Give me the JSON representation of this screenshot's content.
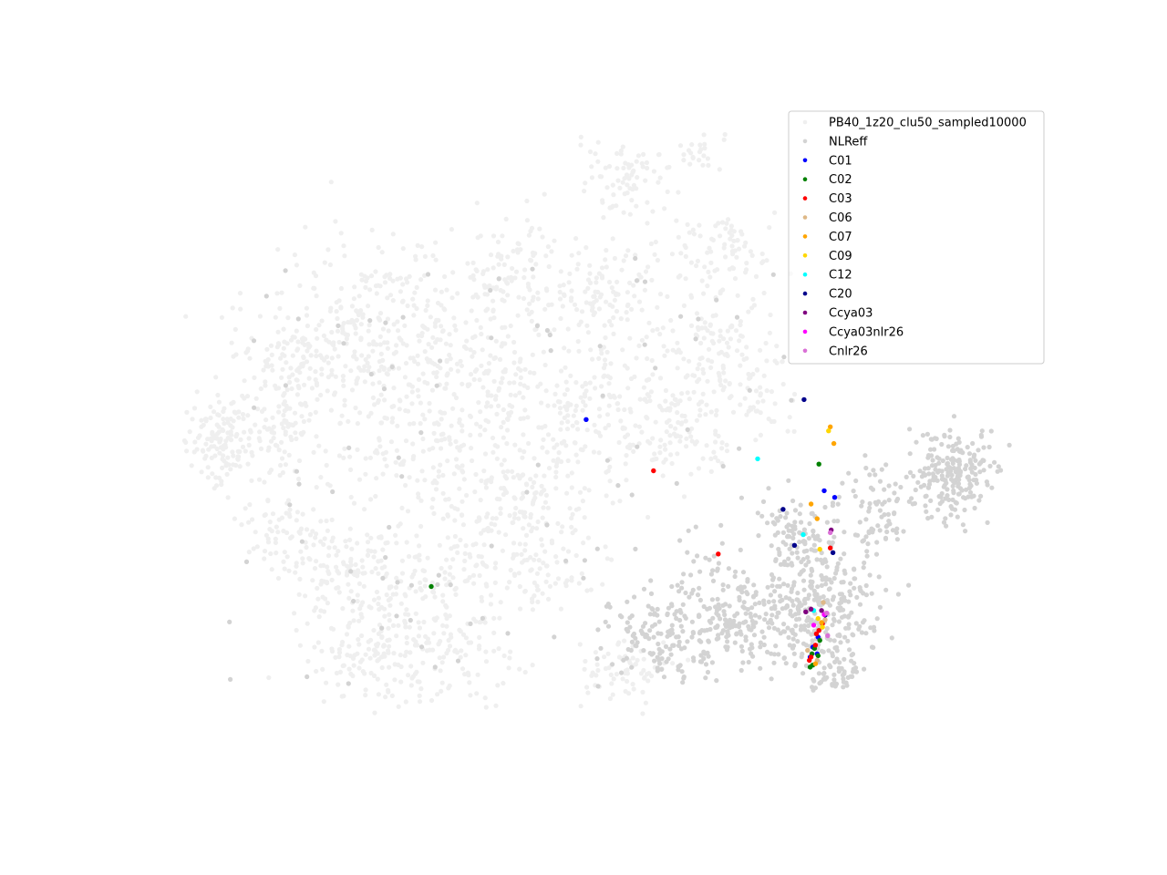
{
  "chart_data": {
    "type": "scatter",
    "title": "",
    "xlabel": "",
    "ylabel": "",
    "axes_visible": false,
    "grid": false,
    "legend_placement": "upper right",
    "xlim": [
      0,
      100
    ],
    "ylim": [
      0,
      100
    ],
    "background": {
      "name": "PB40_1z20_clu50_sampled10000",
      "color": "#efefef",
      "count": 10000,
      "note_clusters": "dense grey point cloud"
    },
    "nlreff": {
      "name": "NLReff",
      "color": "#d3d3d3",
      "count": 1100
    },
    "series": [
      {
        "name": "C01",
        "color": "#0000ff",
        "points": [
          [
            50.3,
            52.7
          ],
          [
            77.5,
            42.0
          ],
          [
            78.7,
            41.0
          ],
          [
            75.9,
            17.0
          ],
          [
            76.7,
            17.5
          ],
          [
            76.8,
            20.0
          ],
          [
            76.2,
            18.5
          ]
        ]
      },
      {
        "name": "C02",
        "color": "#008000",
        "points": [
          [
            32.6,
            27.6
          ],
          [
            76.9,
            46.0
          ],
          [
            76.2,
            15.8
          ],
          [
            76.8,
            17.2
          ],
          [
            76.1,
            17.5
          ],
          [
            75.9,
            15.5
          ],
          [
            76.4,
            18.3
          ],
          [
            77.0,
            19.5
          ]
        ]
      },
      {
        "name": "C03",
        "color": "#ff0000",
        "points": [
          [
            58.0,
            45.0
          ],
          [
            65.4,
            32.5
          ],
          [
            78.2,
            33.4
          ],
          [
            76.6,
            20.5
          ],
          [
            76.9,
            21.0
          ],
          [
            76.5,
            18.8
          ],
          [
            75.8,
            16.5
          ],
          [
            77.3,
            22.0
          ],
          [
            76.0,
            17.0
          ]
        ]
      },
      {
        "name": "C06",
        "color": "#deb887",
        "points": [
          [
            77.4,
            25.2
          ],
          [
            77.6,
            22.6
          ],
          [
            75.6,
            18.0
          ],
          [
            76.7,
            16.5
          ]
        ]
      },
      {
        "name": "C07",
        "color": "#ffa500",
        "points": [
          [
            76.0,
            40.0
          ],
          [
            76.7,
            37.8
          ],
          [
            78.6,
            49.1
          ],
          [
            78.2,
            51.6
          ],
          [
            77.2,
            22.2
          ],
          [
            76.5,
            16.0
          ]
        ]
      },
      {
        "name": "C09",
        "color": "#ffd700",
        "points": [
          [
            77.0,
            33.2
          ],
          [
            78.0,
            51.0
          ],
          [
            76.8,
            22.8
          ],
          [
            77.3,
            21.5
          ]
        ]
      },
      {
        "name": "C12",
        "color": "#00ffff",
        "points": [
          [
            69.9,
            46.8
          ],
          [
            75.1,
            35.4
          ],
          [
            76.3,
            24.0
          ]
        ]
      },
      {
        "name": "C20",
        "color": "#00008b",
        "points": [
          [
            75.2,
            55.7
          ],
          [
            72.8,
            39.2
          ],
          [
            74.1,
            33.8
          ],
          [
            78.5,
            32.7
          ],
          [
            77.6,
            23.3
          ]
        ]
      },
      {
        "name": "Ccya03",
        "color": "#800080",
        "points": [
          [
            78.3,
            36.1
          ],
          [
            75.4,
            23.8
          ],
          [
            76.0,
            24.2
          ],
          [
            77.2,
            24.0
          ]
        ]
      },
      {
        "name": "Ccya03nlr26",
        "color": "#ff00ff",
        "points": [
          [
            77.5,
            23.4
          ],
          [
            76.3,
            21.8
          ]
        ]
      },
      {
        "name": "Cnlr26",
        "color": "#da70d6",
        "points": [
          [
            78.2,
            35.7
          ],
          [
            77.8,
            23.6
          ],
          [
            77.9,
            20.2
          ]
        ]
      }
    ]
  }
}
